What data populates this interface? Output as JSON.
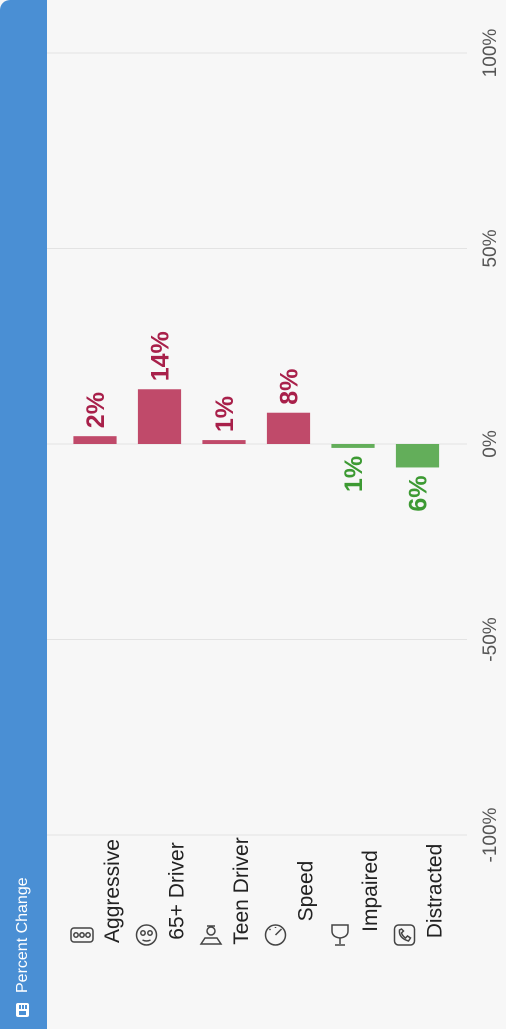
{
  "header": {
    "title": "Percent Change",
    "icon": "chart-icon"
  },
  "chart_data": {
    "type": "bar",
    "orientation": "horizontal",
    "categories": [
      "Aggressive",
      "65+ Driver",
      "Teen Driver",
      "Speed",
      "Impaired",
      "Distracted"
    ],
    "category_icons": [
      "traffic-light-icon",
      "elderly-face-icon",
      "teen-driver-icon",
      "speedometer-icon",
      "wine-glass-icon",
      "phone-icon"
    ],
    "values": [
      2,
      14,
      1,
      8,
      -1,
      -6
    ],
    "value_labels": [
      "2%",
      "14%",
      "1%",
      "8%",
      "1%",
      "6%"
    ],
    "xlim": [
      -100,
      100
    ],
    "ticks": [
      -100,
      -50,
      0,
      50,
      100
    ],
    "tick_labels": [
      "-100%",
      "-50%",
      "0%",
      "50%",
      "100%"
    ],
    "grid": true,
    "colors": {
      "increase": "#c04a6a",
      "decrease": "#63ae5a",
      "increase_text": "#a8204a",
      "decrease_text": "#3d9a33"
    },
    "title": "",
    "xlabel": "",
    "ylabel": ""
  }
}
